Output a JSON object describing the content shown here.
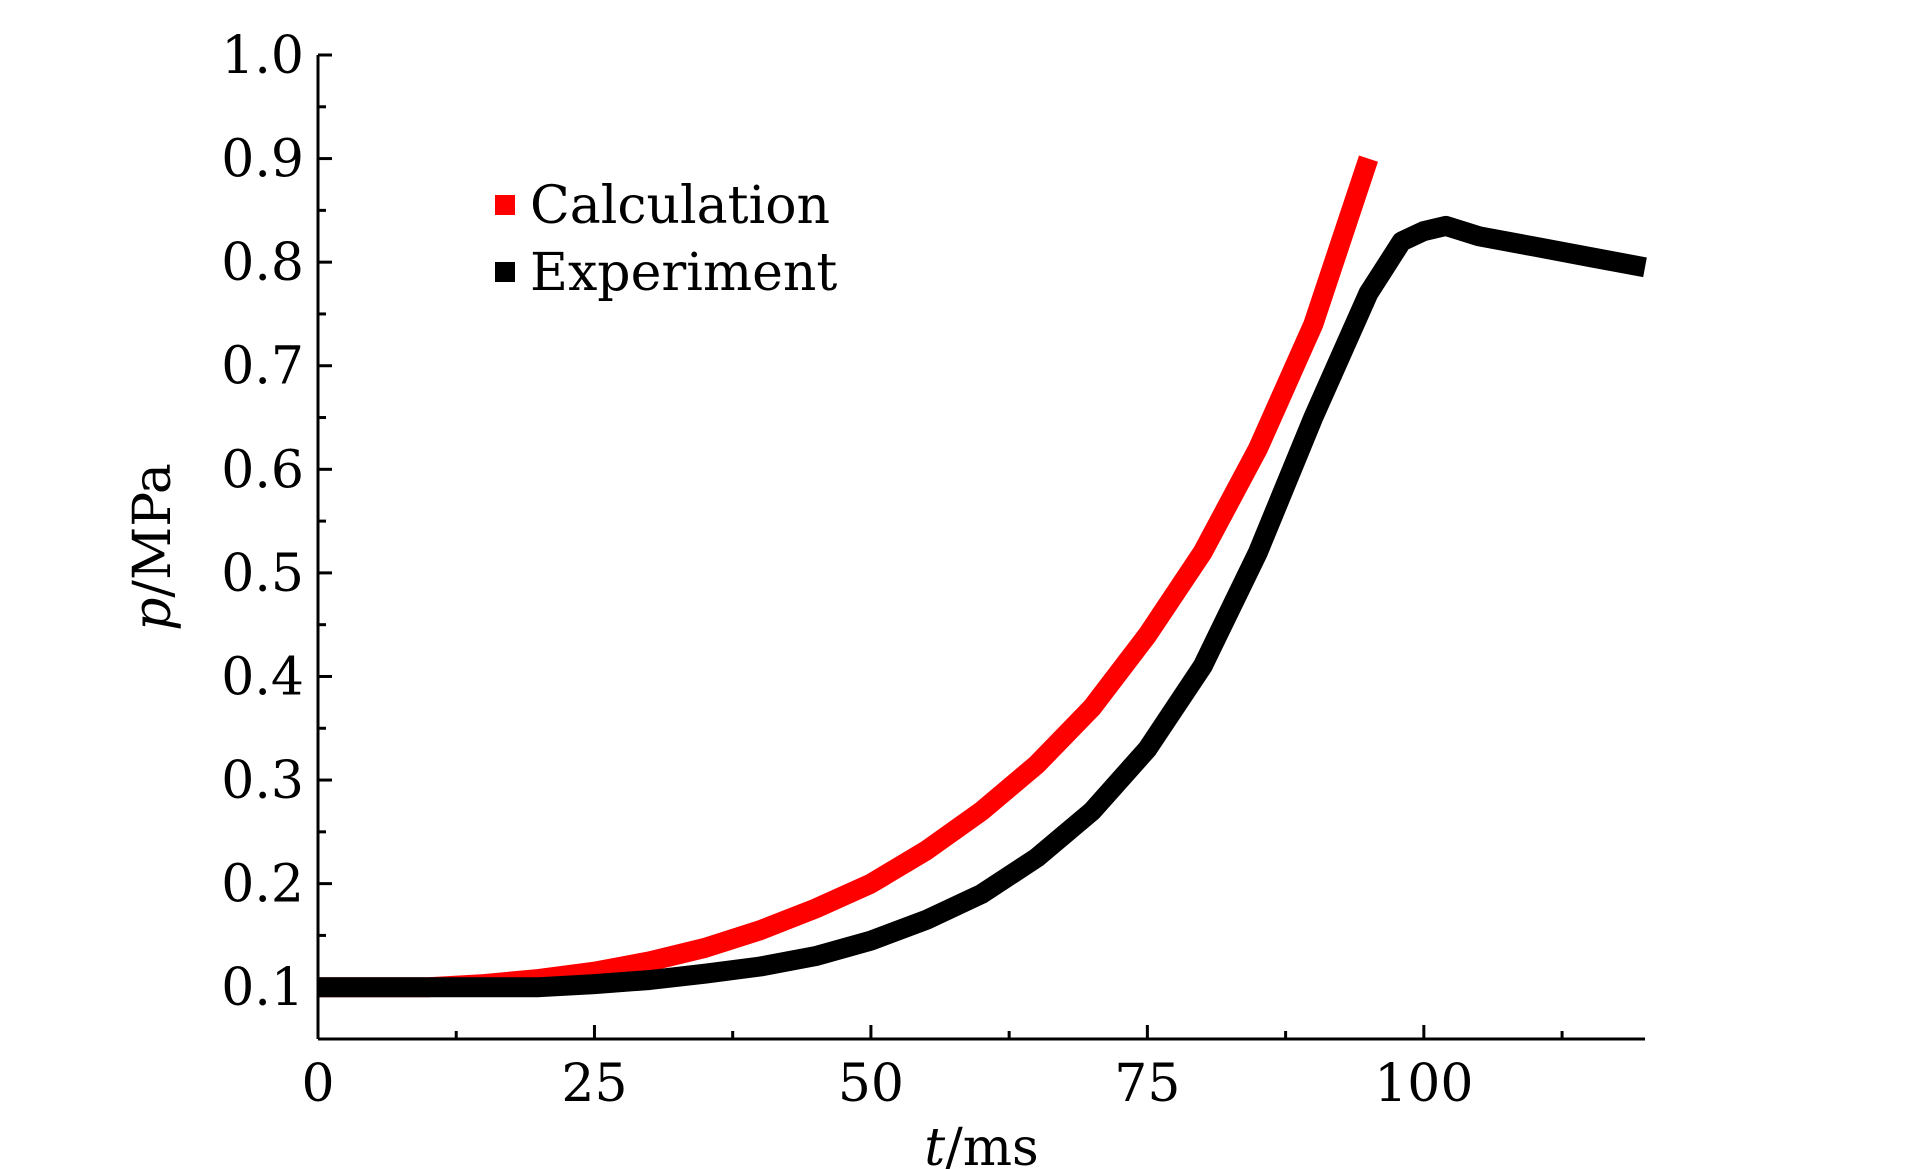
{
  "chart_data": {
    "type": "line",
    "title": "",
    "xlabel": {
      "var": "t",
      "unit": "/ms"
    },
    "ylabel": {
      "var": "p",
      "unit": "/MPa"
    },
    "xlim": [
      0,
      120
    ],
    "ylim": [
      0.05,
      1.0
    ],
    "x_ticks": [
      0,
      25,
      50,
      75,
      100
    ],
    "x_tick_labels": [
      "0",
      "25",
      "50",
      "75",
      "100"
    ],
    "y_ticks": [
      0.1,
      0.2,
      0.3,
      0.4,
      0.5,
      0.6,
      0.7,
      0.8,
      0.9,
      1.0
    ],
    "y_tick_labels": [
      "0.1",
      "0.2",
      "0.3",
      "0.4",
      "0.5",
      "0.6",
      "0.7",
      "0.8",
      "0.9",
      "1.0"
    ],
    "grid": false,
    "legend_position": "top-left",
    "series": [
      {
        "name": "Calculation",
        "color": "#ff0000",
        "x": [
          0,
          10,
          15,
          20,
          25,
          30,
          35,
          40,
          45,
          50,
          55,
          60,
          65,
          70,
          75,
          80,
          85,
          90,
          95
        ],
        "y": [
          0.1,
          0.1,
          0.103,
          0.108,
          0.115,
          0.125,
          0.138,
          0.155,
          0.176,
          0.2,
          0.232,
          0.27,
          0.315,
          0.37,
          0.44,
          0.52,
          0.62,
          0.74,
          0.9
        ]
      },
      {
        "name": "Experiment",
        "color": "#000000",
        "x": [
          0,
          10,
          20,
          25,
          30,
          35,
          40,
          45,
          50,
          55,
          60,
          65,
          70,
          75,
          80,
          85,
          90,
          95,
          98,
          100,
          102,
          105,
          110,
          115,
          120
        ],
        "y": [
          0.1,
          0.1,
          0.1,
          0.103,
          0.107,
          0.113,
          0.12,
          0.13,
          0.145,
          0.165,
          0.19,
          0.225,
          0.27,
          0.33,
          0.41,
          0.52,
          0.65,
          0.77,
          0.82,
          0.83,
          0.835,
          0.825,
          0.815,
          0.805,
          0.795
        ]
      }
    ]
  }
}
